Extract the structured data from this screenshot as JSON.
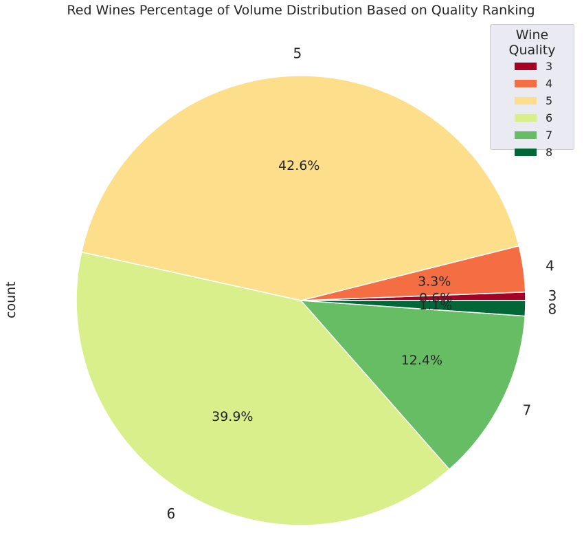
{
  "chart_data": {
    "type": "pie",
    "title": "Red Wines Percentage of Volume Distribution Based on Quality Ranking",
    "ylabel": "count",
    "legend": {
      "title": "Wine Quality",
      "position": "top-right"
    },
    "slices": [
      {
        "label": "3",
        "percent": 0.6,
        "pct_label": "0.6%",
        "color": "#a50026"
      },
      {
        "label": "4",
        "percent": 3.3,
        "pct_label": "3.3%",
        "color": "#f46d43"
      },
      {
        "label": "5",
        "percent": 42.6,
        "pct_label": "42.6%",
        "color": "#fddf8b"
      },
      {
        "label": "6",
        "percent": 39.9,
        "pct_label": "39.9%",
        "color": "#d9ef8b"
      },
      {
        "label": "7",
        "percent": 12.4,
        "pct_label": "12.4%",
        "color": "#66bd63"
      },
      {
        "label": "8",
        "percent": 1.1,
        "pct_label": "1.1%",
        "color": "#006837"
      }
    ],
    "counterclockwise_from_east": true
  }
}
